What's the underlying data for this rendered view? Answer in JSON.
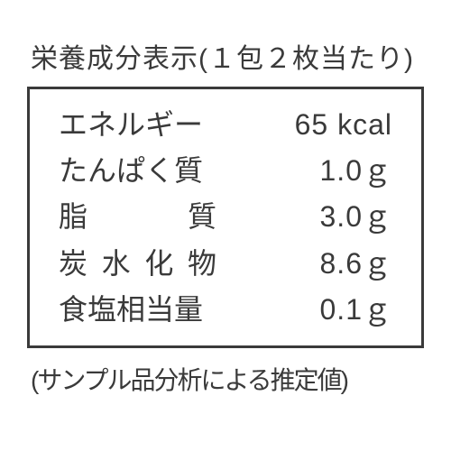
{
  "header": "栄養成分表示(１包２枚当たり)",
  "nutrition": {
    "rows": [
      {
        "label": "エネルギー",
        "value": "65 kcal",
        "label_width": "170px"
      },
      {
        "label": "たんぱく質",
        "value": "1.0ｇ",
        "label_width": "175px"
      },
      {
        "label": "脂質",
        "value": "3.0ｇ",
        "label_width": "175px",
        "justified": true
      },
      {
        "label": "炭水化物",
        "value": "8.6ｇ",
        "label_width": "175px",
        "justified": true
      },
      {
        "label": "食塩相当量",
        "value": "0.1ｇ",
        "label_width": "175px"
      }
    ],
    "border_color": "#3a3a3a",
    "text_color": "#3a3a3a",
    "background_color": "#ffffff",
    "font_size_header": 30,
    "font_size_rows": 32,
    "font_size_footer": 28
  },
  "footer": "(サンプル品分析による推定値)"
}
